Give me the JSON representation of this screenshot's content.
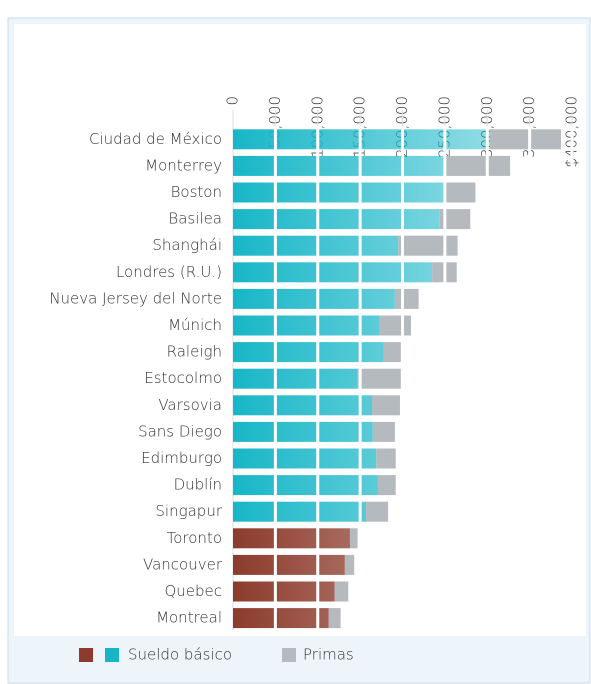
{
  "chart_data": {
    "type": "stacked-barh",
    "categories": [
      "Ciudad de México",
      "Monterrey",
      "Boston",
      "Basilea",
      "Shanghái",
      "Londres (R.U.)",
      "Nueva Jersey del Norte",
      "Múnich",
      "Raleigh",
      "Estocolmo",
      "Varsovia",
      "Sans Diego",
      "Edimburgo",
      "Dublín",
      "Singapur",
      "Toronto",
      "Vancouver",
      "Quebec",
      "Montreal"
    ],
    "series": [
      {
        "name": "Sueldo básico",
        "color": "#17b6c7",
        "colors": [
          "#17b6c7",
          "#17b6c7",
          "#17b6c7",
          "#17b6c7",
          "#17b6c7",
          "#17b6c7",
          "#17b6c7",
          "#17b6c7",
          "#17b6c7",
          "#17b6c7",
          "#17b6c7",
          "#17b6c7",
          "#17b6c7",
          "#17b6c7",
          "#17b6c7",
          "#8c3b2c",
          "#8c3b2c",
          "#8c3b2c",
          "#8c3b2c"
        ],
        "values": [
          303000,
          250000,
          250000,
          244000,
          195000,
          235000,
          191000,
          173000,
          178000,
          147000,
          164000,
          165000,
          169000,
          171000,
          157000,
          138000,
          132000,
          120000,
          113000
        ]
      },
      {
        "name": "Primas",
        "color": "#b4babe",
        "values": [
          84000,
          77000,
          36000,
          36000,
          70000,
          29000,
          28000,
          37000,
          20000,
          51000,
          33000,
          26000,
          23000,
          21000,
          26000,
          9000,
          11000,
          16000,
          14000
        ]
      }
    ],
    "legend_colors": [
      "#8c3b2c",
      "#17b6c7"
    ],
    "xlim": [
      0,
      400000
    ],
    "xticks": [
      0,
      {
        "value": 50000,
        "label": "50,000"
      },
      {
        "value": 100000,
        "label": "100,000"
      },
      {
        "value": 150000,
        "label": "150,000"
      },
      {
        "value": 200000,
        "label": "200,000"
      },
      {
        "value": 250000,
        "label": "250,000"
      },
      {
        "value": 300000,
        "label": "300,000"
      },
      {
        "value": 350000,
        "label": "350,000"
      },
      {
        "value": 400000,
        "label": "$400,000"
      }
    ],
    "grid": true
  }
}
